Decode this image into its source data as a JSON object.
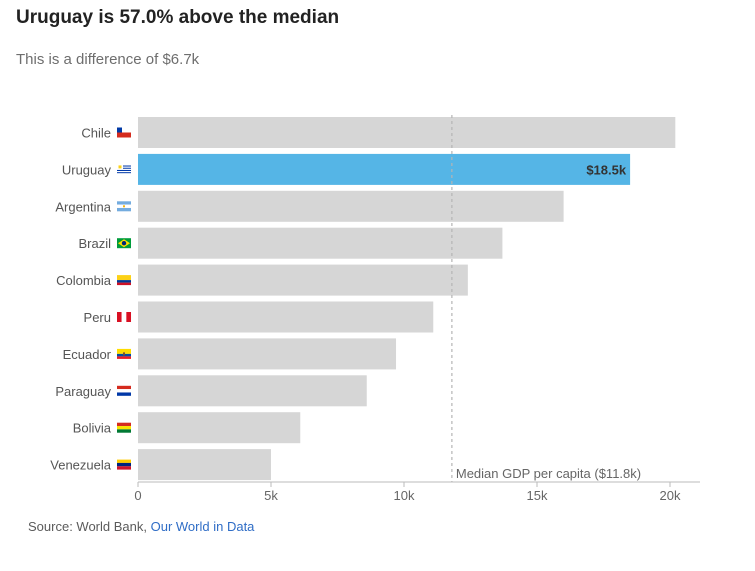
{
  "header": {
    "title": "Uruguay is 57.0% above the median",
    "subtitle": "This is a difference of $6.7k"
  },
  "footer": {
    "source_prefix": "Source: World Bank,",
    "source_link": "Our World in Data"
  },
  "colors": {
    "bar": "#d6d6d6",
    "highlight": "#55b5e6",
    "median_line": "#b5b5b5",
    "axis_text": "#666666",
    "label_text": "#555555",
    "link": "#2f6dc6"
  },
  "chart_data": {
    "type": "bar",
    "orientation": "horizontal",
    "categories": [
      "Chile",
      "Uruguay",
      "Argentina",
      "Brazil",
      "Colombia",
      "Peru",
      "Ecuador",
      "Paraguay",
      "Bolivia",
      "Venezuela"
    ],
    "flag_icons": [
      "chile-flag-icon",
      "uruguay-flag-icon",
      "argentina-flag-icon",
      "brazil-flag-icon",
      "colombia-flag-icon",
      "peru-flag-icon",
      "ecuador-flag-icon",
      "paraguay-flag-icon",
      "bolivia-flag-icon",
      "venezuela-flag-icon"
    ],
    "values": [
      20200,
      18500,
      16000,
      13700,
      12400,
      11100,
      9700,
      8600,
      6100,
      5000
    ],
    "highlight": "Uruguay",
    "highlight_label": "$18.5k",
    "median": 11800,
    "median_label": "Median GDP per capita ($11.8k)",
    "xlim": [
      0,
      21000
    ],
    "xticks": [
      0,
      5000,
      10000,
      15000,
      20000
    ],
    "xtick_labels": [
      "0",
      "5k",
      "10k",
      "15k",
      "20k"
    ],
    "grid": false
  }
}
